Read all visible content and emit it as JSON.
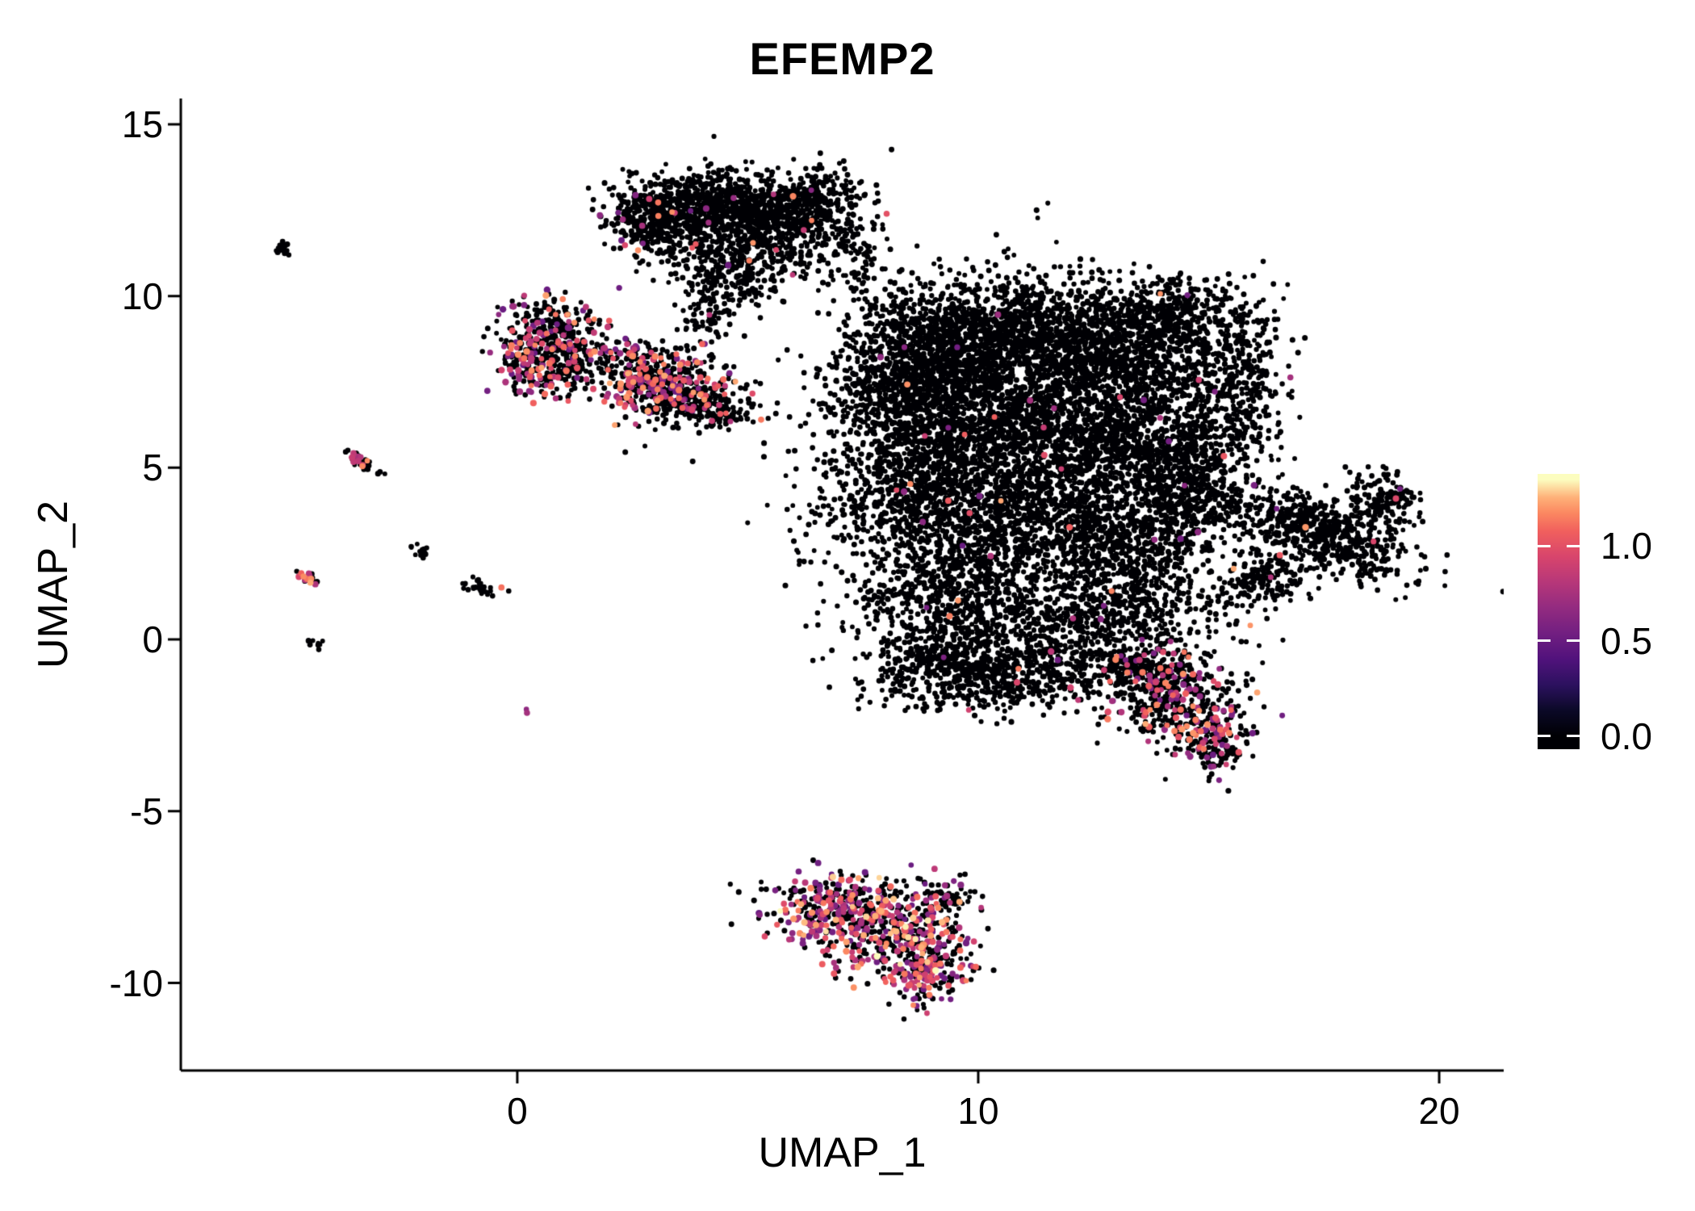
{
  "title": "EFEMP2",
  "axes": {
    "x_label": "UMAP_1",
    "y_label": "UMAP_2",
    "x_tick_values": [
      0,
      10,
      20
    ],
    "x_tick_labels": [
      "0",
      "10",
      "20"
    ],
    "y_tick_values": [
      15,
      10,
      5,
      0,
      -5,
      -10
    ],
    "y_tick_labels": [
      "15",
      "10",
      "5",
      "0",
      "-5",
      "-10"
    ]
  },
  "legend": {
    "tick_values": [
      1.0,
      0.5,
      0.0
    ],
    "tick_labels": [
      "1.0",
      "0.5",
      "0.0"
    ],
    "value_range": [
      -0.07,
      1.38
    ],
    "colormap": [
      [
        0.0,
        "#000004"
      ],
      [
        0.1,
        "#0b0927"
      ],
      [
        0.2,
        "#2c115f"
      ],
      [
        0.3,
        "#51127c"
      ],
      [
        0.4,
        "#721f81"
      ],
      [
        0.5,
        "#932b80"
      ],
      [
        0.6,
        "#b73779"
      ],
      [
        0.7,
        "#d8456c"
      ],
      [
        0.8,
        "#f1605d"
      ],
      [
        0.87,
        "#fb8861"
      ],
      [
        0.93,
        "#feb078"
      ],
      [
        1.0,
        "#fcfdbf"
      ]
    ]
  },
  "chart_data": {
    "type": "scatter",
    "title": "EFEMP2",
    "xlabel": "UMAP_1",
    "ylabel": "UMAP_2",
    "xlim": [
      -7.3,
      21.4
    ],
    "ylim": [
      -12.55,
      15.75
    ],
    "grid": false,
    "legend_position": "right",
    "color_scale": {
      "name": "magma-like",
      "min": 0.0,
      "max": 1.35,
      "ticks": [
        0.0,
        0.5,
        1.0
      ]
    },
    "zero_color": "#000004",
    "point_radius": 3.0,
    "seed": 42,
    "clusters": [
      {
        "cx": 4.2,
        "cy": 12.5,
        "sx": 1.05,
        "sy": 0.55,
        "n": 850,
        "f": 0.012
      },
      {
        "cx": 5.8,
        "cy": 12.3,
        "sx": 0.75,
        "sy": 0.65,
        "n": 420,
        "f": 0.008
      },
      {
        "cx": 2.9,
        "cy": 12.2,
        "sx": 0.45,
        "sy": 0.5,
        "n": 200,
        "f": 0.06
      },
      {
        "cx": 4.8,
        "cy": 11.2,
        "sx": 0.8,
        "sy": 0.45,
        "n": 260,
        "f": 0.01
      },
      {
        "cx": 6.6,
        "cy": 12.9,
        "sx": 0.5,
        "sy": 0.4,
        "n": 120,
        "f": 0
      },
      {
        "cx": 7.2,
        "cy": 11.6,
        "sx": 0.35,
        "sy": 0.5,
        "n": 60,
        "f": 0
      },
      {
        "cx": 4.15,
        "cy": 9.9,
        "sx": 0.35,
        "sy": 0.8,
        "n": 130,
        "f": 0.02
      },
      {
        "cx": 5.0,
        "cy": 10.3,
        "sx": 0.4,
        "sy": 0.4,
        "n": 70,
        "f": 0
      },
      {
        "cx": 7.6,
        "cy": 10.6,
        "sx": 0.5,
        "sy": 0.5,
        "n": 40,
        "f": 0
      },
      {
        "cx": 0.75,
        "cy": 9.0,
        "sx": 0.55,
        "sy": 0.5,
        "n": 230,
        "f": 0.28
      },
      {
        "cx": 1.0,
        "cy": 7.9,
        "sx": 0.6,
        "sy": 0.45,
        "n": 230,
        "f": 0.3
      },
      {
        "cx": 0.1,
        "cy": 8.2,
        "sx": 0.25,
        "sy": 0.45,
        "n": 80,
        "f": 0.25
      },
      {
        "cx": 1.8,
        "cy": 8.3,
        "sx": 0.15,
        "sy": 0.15,
        "n": 8,
        "f": 0.3
      },
      {
        "cx": 3.1,
        "cy": 7.4,
        "sx": 0.6,
        "sy": 0.5,
        "n": 380,
        "f": 0.32
      },
      {
        "cx": 3.9,
        "cy": 6.9,
        "sx": 0.5,
        "sy": 0.35,
        "n": 180,
        "f": 0.18
      },
      {
        "cx": 4.5,
        "cy": 6.6,
        "sx": 0.25,
        "sy": 0.2,
        "n": 60,
        "f": 0.08
      },
      {
        "cx": 2.7,
        "cy": 8.3,
        "sx": 0.3,
        "sy": 0.25,
        "n": 50,
        "f": 0.2
      },
      {
        "cx": 9.3,
        "cy": 8.7,
        "sx": 1.1,
        "sy": 0.85,
        "n": 900,
        "f": 0.004
      },
      {
        "cx": 11.4,
        "cy": 8.9,
        "sx": 1.3,
        "sy": 0.8,
        "n": 950,
        "f": 0.003
      },
      {
        "cx": 13.3,
        "cy": 8.2,
        "sx": 1.0,
        "sy": 0.8,
        "n": 650,
        "f": 0.004
      },
      {
        "cx": 14.4,
        "cy": 9.6,
        "sx": 0.8,
        "sy": 0.45,
        "n": 260,
        "f": 0.003
      },
      {
        "cx": 15.6,
        "cy": 7.6,
        "sx": 0.5,
        "sy": 1.1,
        "n": 330,
        "f": 0.004
      },
      {
        "cx": 8.3,
        "cy": 7.3,
        "sx": 0.7,
        "sy": 0.8,
        "n": 420,
        "f": 0.005
      },
      {
        "cx": 9.9,
        "cy": 6.3,
        "sx": 1.4,
        "sy": 1.1,
        "n": 1050,
        "f": 0.004
      },
      {
        "cx": 12.3,
        "cy": 6.0,
        "sx": 1.4,
        "sy": 1.1,
        "n": 1000,
        "f": 0.003
      },
      {
        "cx": 14.3,
        "cy": 5.3,
        "sx": 0.9,
        "sy": 1.0,
        "n": 520,
        "f": 0.005
      },
      {
        "cx": 8.9,
        "cy": 4.2,
        "sx": 1.1,
        "sy": 1.0,
        "n": 750,
        "f": 0.006
      },
      {
        "cx": 11.2,
        "cy": 3.4,
        "sx": 1.3,
        "sy": 1.1,
        "n": 800,
        "f": 0.004
      },
      {
        "cx": 13.5,
        "cy": 2.8,
        "sx": 0.9,
        "sy": 0.9,
        "n": 420,
        "f": 0.006
      },
      {
        "cx": 9.4,
        "cy": 1.2,
        "sx": 1.1,
        "sy": 0.95,
        "n": 600,
        "f": 0.006
      },
      {
        "cx": 11.4,
        "cy": 0.2,
        "sx": 1.2,
        "sy": 0.8,
        "n": 450,
        "f": 0.005
      },
      {
        "cx": 13.2,
        "cy": 0.9,
        "sx": 0.8,
        "sy": 0.8,
        "n": 280,
        "f": 0.008
      },
      {
        "cx": 9.2,
        "cy": -0.9,
        "sx": 0.9,
        "sy": 0.55,
        "n": 300,
        "f": 0.01
      },
      {
        "cx": 11.0,
        "cy": -1.3,
        "sx": 1.1,
        "sy": 0.45,
        "n": 220,
        "f": 0.01
      },
      {
        "cx": 14.6,
        "cy": 3.9,
        "sx": 0.6,
        "sy": 0.7,
        "n": 200,
        "f": 0.01
      },
      {
        "cx": 11.0,
        "cy": 5.0,
        "sx": 2.6,
        "sy": 2.6,
        "n": 450,
        "f": 0.004
      },
      {
        "cx": 9.6,
        "cy": -0.8,
        "sx": 0.8,
        "sy": 0.18,
        "rot": -20,
        "n": 90,
        "f": 0.01
      },
      {
        "cx": 17.4,
        "cy": 3.1,
        "sx": 1.15,
        "sy": 0.5,
        "rot": -28,
        "n": 600,
        "f": 0.012
      },
      {
        "cx": 18.9,
        "cy": 4.1,
        "sx": 0.45,
        "sy": 0.35,
        "rot": -30,
        "n": 140,
        "f": 0.01
      },
      {
        "cx": 16.2,
        "cy": 1.9,
        "sx": 0.45,
        "sy": 0.4,
        "n": 130,
        "f": 0.01
      },
      {
        "cx": 15.6,
        "cy": 1.2,
        "sx": 0.5,
        "sy": 0.4,
        "n": 60,
        "f": 0.02
      },
      {
        "cx": 14.2,
        "cy": -1.6,
        "sx": 0.8,
        "sy": 0.7,
        "n": 420,
        "f": 0.22
      },
      {
        "cx": 15.1,
        "cy": -2.9,
        "sx": 0.45,
        "sy": 0.5,
        "n": 160,
        "f": 0.3
      },
      {
        "cx": 13.4,
        "cy": -0.8,
        "sx": 0.5,
        "sy": 0.4,
        "n": 150,
        "f": 0.1
      },
      {
        "cx": 6.9,
        "cy": -7.8,
        "sx": 0.75,
        "sy": 0.5,
        "n": 300,
        "f": 0.45,
        "lo": 0.5,
        "hi": 1.35
      },
      {
        "cx": 8.2,
        "cy": -8.5,
        "sx": 0.8,
        "sy": 0.65,
        "n": 380,
        "f": 0.42,
        "lo": 0.5,
        "hi": 1.35
      },
      {
        "cx": 8.8,
        "cy": -9.7,
        "sx": 0.45,
        "sy": 0.5,
        "n": 170,
        "f": 0.5,
        "lo": 0.5,
        "hi": 1.35
      },
      {
        "cx": 9.3,
        "cy": -7.5,
        "sx": 0.3,
        "sy": 0.3,
        "n": 60,
        "f": 0.2
      },
      {
        "cx": -5.1,
        "cy": 11.4,
        "sx": 0.14,
        "sy": 0.07,
        "rot": -35,
        "n": 16,
        "f": 0
      },
      {
        "cx": -3.35,
        "cy": 5.15,
        "sx": 0.22,
        "sy": 0.1,
        "rot": -35,
        "n": 30,
        "f": 0.45,
        "lo": 0.7,
        "hi": 1.3
      },
      {
        "cx": -4.55,
        "cy": 1.8,
        "sx": 0.14,
        "sy": 0.09,
        "rot": -40,
        "n": 20,
        "f": 0.55,
        "lo": 0.7,
        "hi": 1.3
      },
      {
        "cx": -2.1,
        "cy": 2.6,
        "sx": 0.12,
        "sy": 0.09,
        "rot": -30,
        "n": 16,
        "f": 0
      },
      {
        "cx": -0.75,
        "cy": 1.5,
        "sx": 0.22,
        "sy": 0.09,
        "rot": -30,
        "n": 30,
        "f": 0.06
      },
      {
        "cx": -4.35,
        "cy": -0.15,
        "sx": 0.09,
        "sy": 0.06,
        "n": 10,
        "f": 0
      },
      {
        "cx": 0.25,
        "cy": -2.1,
        "sx": 0.05,
        "sy": 0.05,
        "n": 2,
        "f": 1.0,
        "lo": 0.65,
        "hi": 0.85
      }
    ]
  }
}
